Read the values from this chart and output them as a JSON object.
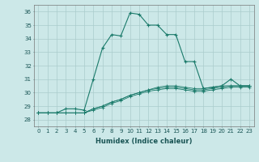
{
  "title": "",
  "xlabel": "Humidex (Indice chaleur)",
  "ylabel": "",
  "bg_color": "#cce8e8",
  "grid_color": "#aacccc",
  "line_color": "#1a7a6a",
  "xlim": [
    -0.5,
    23.5
  ],
  "ylim": [
    27.5,
    36.5
  ],
  "yticks": [
    28,
    29,
    30,
    31,
    32,
    33,
    34,
    35,
    36
  ],
  "xticks": [
    0,
    1,
    2,
    3,
    4,
    5,
    6,
    7,
    8,
    9,
    10,
    11,
    12,
    13,
    14,
    15,
    16,
    17,
    18,
    19,
    20,
    21,
    22,
    23
  ],
  "series": [
    [
      28.5,
      28.5,
      28.5,
      28.8,
      28.8,
      28.7,
      31.0,
      33.3,
      34.3,
      34.2,
      35.9,
      35.8,
      35.0,
      35.0,
      34.3,
      34.3,
      32.3,
      32.3,
      30.3,
      30.4,
      30.5,
      31.0,
      30.5,
      30.5
    ],
    [
      28.5,
      28.5,
      28.5,
      28.5,
      28.5,
      28.5,
      28.8,
      29.0,
      29.3,
      29.5,
      29.8,
      30.0,
      30.2,
      30.4,
      30.5,
      30.5,
      30.4,
      30.3,
      30.3,
      30.4,
      30.5,
      30.5,
      30.5,
      30.5
    ],
    [
      28.5,
      28.5,
      28.5,
      28.5,
      28.5,
      28.5,
      28.8,
      29.0,
      29.3,
      29.5,
      29.8,
      30.0,
      30.2,
      30.3,
      30.4,
      30.4,
      30.3,
      30.2,
      30.2,
      30.3,
      30.4,
      30.5,
      30.5,
      30.5
    ],
    [
      28.5,
      28.5,
      28.5,
      28.5,
      28.5,
      28.5,
      28.7,
      28.9,
      29.2,
      29.4,
      29.7,
      29.9,
      30.1,
      30.2,
      30.3,
      30.3,
      30.2,
      30.1,
      30.1,
      30.2,
      30.3,
      30.4,
      30.4,
      30.4
    ]
  ],
  "xlabel_fontsize": 6,
  "xlabel_color": "#1a5555",
  "tick_fontsize": 5,
  "tick_color": "#1a5555"
}
